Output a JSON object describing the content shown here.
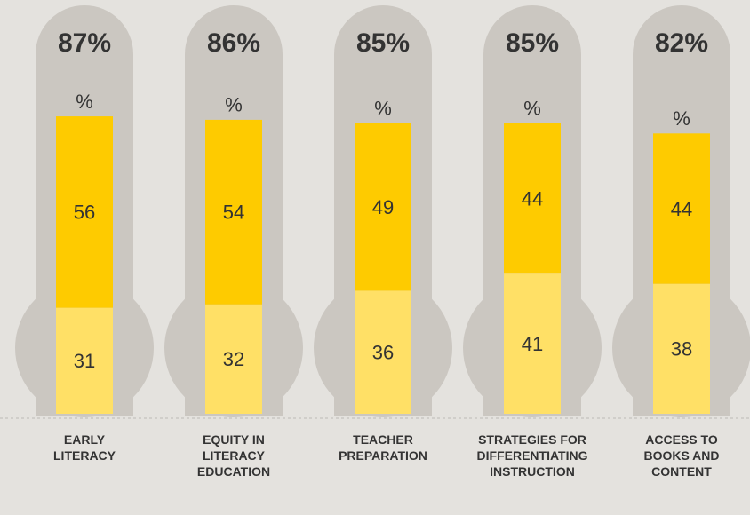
{
  "chart_data": {
    "type": "stacked-bar",
    "categories": [
      "EARLY\nLITERACY",
      "EQUITY IN\nLITERACY\nEDUCATION",
      "TEACHER\nPREPARATION",
      "STRATEGIES FOR\nDIFFERENTIATING\nINSTRUCTION",
      "ACCESS TO\nBOOKS AND\nCONTENT"
    ],
    "series": [
      {
        "color": "#ffe066",
        "values": [
          31,
          32,
          36,
          41,
          38
        ]
      },
      {
        "color": "#fecb00",
        "values": [
          56,
          54,
          49,
          44,
          44
        ]
      }
    ],
    "total_labels": [
      "87%",
      "86%",
      "85%",
      "85%",
      "82%"
    ],
    "unit_label": "%"
  }
}
